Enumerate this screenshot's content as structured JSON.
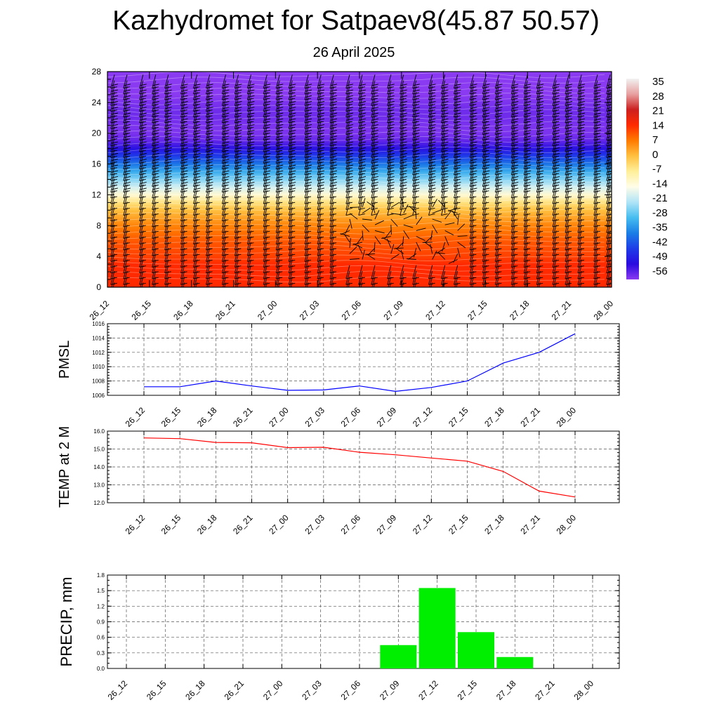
{
  "header": {
    "title": "Kazhydromet for Satpaev8(45.87 50.57)",
    "subtitle": "26 April 2025"
  },
  "chart_data": [
    {
      "type": "heatmap",
      "title": "",
      "x_ticks": [
        "26_12",
        "26_15",
        "26_18",
        "26_21",
        "27_00",
        "27_03",
        "27_06",
        "27_09",
        "27_12",
        "27_15",
        "27_18",
        "27_21",
        "28_00"
      ],
      "y_ticks": [
        0,
        4,
        8,
        12,
        16,
        20,
        24,
        28
      ],
      "ylim": [
        0,
        28
      ],
      "value_profile": {
        "levels": [
          0,
          1,
          2,
          3,
          4,
          5,
          6,
          7,
          8,
          9,
          10,
          11,
          12,
          13,
          14,
          15,
          16,
          17,
          18,
          19,
          20,
          21,
          22,
          23,
          24,
          25,
          26,
          27,
          28
        ],
        "values": [
          14,
          14,
          14,
          14,
          12,
          11,
          10,
          8,
          6,
          3,
          0,
          -5,
          -12,
          -18,
          -24,
          -30,
          -36,
          -42,
          -48,
          -53,
          -55,
          -55,
          -54,
          -54,
          -55,
          -56,
          -57,
          -56,
          -56
        ]
      },
      "colorbar": {
        "labels": [
          35,
          28,
          21,
          14,
          7,
          0,
          -7,
          -14,
          -21,
          -28,
          -35,
          -42,
          -49,
          -56
        ],
        "color_stops": [
          "#f2f2f2",
          "#e8a0a0",
          "#cc2020",
          "#ff2a00",
          "#ff7a00",
          "#ffc040",
          "#ffef9a",
          "#fffde8",
          "#b0e4f7",
          "#46bdf0",
          "#1a7ee6",
          "#1e3ce8",
          "#2a0ae0",
          "#8a3af0"
        ]
      },
      "wind_barbs": true,
      "grid": false
    },
    {
      "type": "line",
      "ylabel": "PMSL",
      "x": [
        "26_12",
        "26_15",
        "26_18",
        "26_21",
        "27_00",
        "27_03",
        "27_06",
        "27_09",
        "27_12",
        "27_15",
        "27_18",
        "27_21",
        "28_00"
      ],
      "series": [
        {
          "values": [
            1007.2,
            1007.2,
            1008.0,
            1007.3,
            1006.7,
            1006.75,
            1007.3,
            1006.55,
            1007.1,
            1008.0,
            1010.5,
            1012.0,
            1014.6
          ],
          "color": "#0000ff"
        }
      ],
      "ylim": [
        1006,
        1016
      ],
      "y_ticks": [
        "1006",
        "1008",
        "1010",
        "1012",
        "1014",
        "1016"
      ],
      "grid": true
    },
    {
      "type": "line",
      "ylabel": "TEMP at 2 M",
      "x": [
        "26_12",
        "26_15",
        "26_18",
        "26_21",
        "27_00",
        "27_03",
        "27_06",
        "27_09",
        "27_12",
        "27_15",
        "27_18",
        "27_21",
        "28_00"
      ],
      "series": [
        {
          "values": [
            15.62,
            15.58,
            15.37,
            15.35,
            15.08,
            15.1,
            14.82,
            14.68,
            14.5,
            14.32,
            13.75,
            12.65,
            12.32
          ],
          "color": "#ff0000"
        }
      ],
      "ylim": [
        12,
        16
      ],
      "y_ticks": [
        "12.0",
        "13.0",
        "14.0",
        "15.0",
        "16.0"
      ],
      "grid": true
    },
    {
      "type": "bar",
      "ylabel": "PRECIP, mm",
      "categories": [
        "26_12",
        "26_15",
        "26_18",
        "26_21",
        "27_00",
        "27_03",
        "27_06",
        "27_09",
        "27_12",
        "27_15",
        "27_18",
        "27_21",
        "28_00"
      ],
      "values": [
        0,
        0,
        0,
        0,
        0,
        0,
        0,
        0.45,
        1.55,
        0.7,
        0.22,
        0,
        0
      ],
      "ylim": [
        0,
        1.8
      ],
      "y_ticks": [
        "0.0",
        "0.3",
        "0.6",
        "0.9",
        "1.2",
        "1.5",
        "1.8"
      ],
      "color": "#00ee00",
      "grid": true
    }
  ]
}
